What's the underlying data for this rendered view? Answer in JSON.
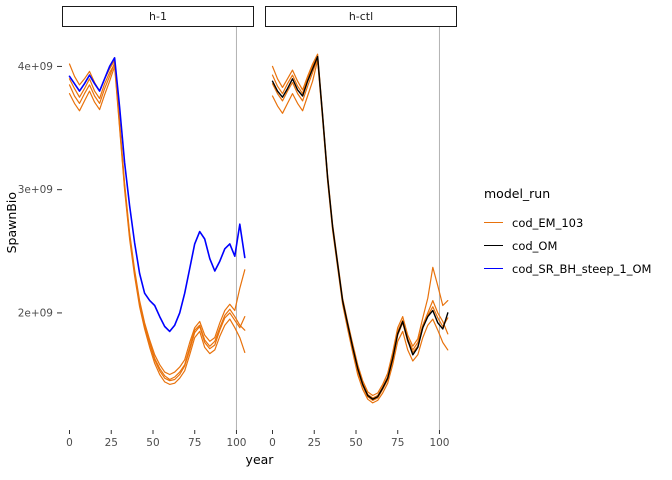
{
  "chart_data": {
    "type": "line",
    "title": "",
    "xlabel": "year",
    "ylabel": "SpawnBio",
    "legend_title": "model_run",
    "legend_position": "right",
    "grid": "off",
    "y_units_multiplier": 1000000000,
    "xlim": [
      -4.5,
      110.5
    ],
    "ylim": [
      1.05,
      4.32
    ],
    "x_ticks": [
      0,
      25,
      50,
      75,
      100
    ],
    "y_ticks": [
      "2e+09",
      "3e+09",
      "4e+09"
    ],
    "y_tick_values": [
      2,
      3,
      4
    ],
    "reference_line_x": 100,
    "reference_line_color": "#b3b3b3",
    "x": [
      0,
      3,
      6,
      9,
      12,
      15,
      18,
      21,
      24,
      27,
      30,
      33,
      36,
      39,
      42,
      45,
      48,
      51,
      54,
      57,
      60,
      63,
      66,
      69,
      72,
      75,
      78,
      81,
      84,
      87,
      90,
      93,
      96,
      99,
      102,
      105
    ],
    "legend": [
      {
        "label": "cod_EM_103",
        "color": "#E8720C"
      },
      {
        "label": "cod_OM",
        "color": "#000000"
      },
      {
        "label": "cod_SR_BH_steep_1_OM",
        "color": "#0000FF"
      }
    ],
    "facets": [
      {
        "label": "h-1",
        "series": [
          {
            "name": "cod_EM_103",
            "iteration": 1,
            "color": "#E8720C",
            "width": 1.2,
            "values": [
              4.02,
              3.92,
              3.85,
              3.9,
              3.96,
              3.87,
              3.8,
              3.9,
              3.98,
              4.05,
              3.55,
              3.05,
              2.65,
              2.35,
              2.1,
              1.92,
              1.78,
              1.66,
              1.58,
              1.52,
              1.5,
              1.52,
              1.56,
              1.62,
              1.76,
              1.88,
              1.93,
              1.82,
              1.77,
              1.8,
              1.92,
              2.02,
              2.07,
              2.02,
              2.2,
              2.35
            ]
          },
          {
            "name": "cod_EM_103",
            "iteration": 2,
            "color": "#E8720C",
            "width": 1.2,
            "values": [
              3.78,
              3.7,
              3.64,
              3.72,
              3.8,
              3.71,
              3.65,
              3.77,
              3.88,
              4.0,
              3.5,
              3.0,
              2.6,
              2.3,
              2.05,
              1.87,
              1.72,
              1.59,
              1.5,
              1.44,
              1.42,
              1.43,
              1.47,
              1.53,
              1.66,
              1.8,
              1.85,
              1.72,
              1.67,
              1.7,
              1.81,
              1.9,
              1.95,
              1.88,
              1.8,
              1.68
            ]
          },
          {
            "name": "cod_EM_103",
            "iteration": 3,
            "color": "#E8720C",
            "width": 1.2,
            "values": [
              3.9,
              3.82,
              3.75,
              3.82,
              3.9,
              3.8,
              3.74,
              3.86,
              3.95,
              4.02,
              3.52,
              3.02,
              2.62,
              2.32,
              2.07,
              1.9,
              1.75,
              1.62,
              1.53,
              1.47,
              1.45,
              1.46,
              1.5,
              1.57,
              1.7,
              1.84,
              1.89,
              1.76,
              1.71,
              1.74,
              1.86,
              1.96,
              2.0,
              1.94,
              1.88,
              1.97
            ]
          },
          {
            "name": "cod_EM_103",
            "iteration": 4,
            "color": "#E8720C",
            "width": 1.2,
            "values": [
              3.85,
              3.76,
              3.7,
              3.78,
              3.85,
              3.76,
              3.7,
              3.82,
              3.92,
              4.03,
              3.53,
              3.03,
              2.63,
              2.33,
              2.08,
              1.9,
              1.76,
              1.63,
              1.55,
              1.49,
              1.46,
              1.48,
              1.52,
              1.58,
              1.72,
              1.86,
              1.9,
              1.78,
              1.73,
              1.77,
              1.88,
              1.98,
              2.03,
              1.97,
              1.9,
              1.86
            ]
          },
          {
            "name": "cod_SR_BH_steep_1_OM",
            "color": "#0000FF",
            "width": 1.6,
            "values": [
              3.92,
              3.86,
              3.8,
              3.86,
              3.93,
              3.86,
              3.8,
              3.9,
              4.0,
              4.07,
              3.67,
              3.22,
              2.87,
              2.57,
              2.32,
              2.16,
              2.1,
              2.06,
              1.97,
              1.89,
              1.85,
              1.9,
              2.0,
              2.16,
              2.36,
              2.56,
              2.66,
              2.6,
              2.44,
              2.34,
              2.42,
              2.52,
              2.56,
              2.46,
              2.72,
              2.45
            ]
          }
        ]
      },
      {
        "label": "h-ctl",
        "series": [
          {
            "name": "cod_EM_103",
            "iteration": 1,
            "color": "#E8720C",
            "width": 1.2,
            "values": [
              4.0,
              3.9,
              3.83,
              3.9,
              3.97,
              3.88,
              3.81,
              3.92,
              4.02,
              4.1,
              3.62,
              3.12,
              2.72,
              2.42,
              2.12,
              1.93,
              1.75,
              1.58,
              1.45,
              1.36,
              1.33,
              1.35,
              1.42,
              1.51,
              1.68,
              1.88,
              1.97,
              1.82,
              1.73,
              1.79,
              1.96,
              2.12,
              2.37,
              2.22,
              2.06,
              2.1
            ]
          },
          {
            "name": "cod_EM_103",
            "iteration": 2,
            "color": "#E8720C",
            "width": 1.2,
            "values": [
              3.76,
              3.68,
              3.62,
              3.7,
              3.78,
              3.7,
              3.64,
              3.76,
              3.88,
              4.05,
              3.57,
              3.07,
              2.67,
              2.37,
              2.07,
              1.87,
              1.68,
              1.5,
              1.38,
              1.3,
              1.27,
              1.29,
              1.35,
              1.43,
              1.58,
              1.77,
              1.85,
              1.7,
              1.61,
              1.66,
              1.8,
              1.9,
              1.95,
              1.86,
              1.76,
              1.7
            ]
          },
          {
            "name": "cod_EM_103",
            "iteration": 3,
            "color": "#E8720C",
            "width": 1.2,
            "values": [
              3.86,
              3.78,
              3.72,
              3.8,
              3.87,
              3.78,
              3.72,
              3.84,
              3.95,
              4.07,
              3.59,
              3.09,
              2.69,
              2.39,
              2.09,
              1.9,
              1.71,
              1.53,
              1.41,
              1.32,
              1.29,
              1.31,
              1.38,
              1.46,
              1.62,
              1.82,
              1.92,
              1.77,
              1.68,
              1.73,
              1.88,
              1.98,
              2.05,
              1.96,
              1.89,
              1.96
            ]
          },
          {
            "name": "cod_EM_103",
            "iteration": 4,
            "color": "#E8720C",
            "width": 1.2,
            "values": [
              3.93,
              3.84,
              3.78,
              3.86,
              3.93,
              3.84,
              3.78,
              3.9,
              4.0,
              4.08,
              3.6,
              3.1,
              2.7,
              2.4,
              2.1,
              1.91,
              1.73,
              1.56,
              1.43,
              1.34,
              1.31,
              1.33,
              1.4,
              1.48,
              1.65,
              1.85,
              1.94,
              1.79,
              1.7,
              1.76,
              1.9,
              2.0,
              2.1,
              2.0,
              1.93,
              1.83
            ]
          },
          {
            "name": "cod_OM",
            "color": "#000000",
            "width": 1.4,
            "values": [
              3.88,
              3.8,
              3.75,
              3.82,
              3.9,
              3.81,
              3.76,
              3.88,
              3.98,
              4.08,
              3.6,
              3.1,
              2.7,
              2.4,
              2.1,
              1.91,
              1.72,
              1.55,
              1.42,
              1.33,
              1.3,
              1.32,
              1.39,
              1.47,
              1.63,
              1.83,
              1.93,
              1.78,
              1.66,
              1.72,
              1.88,
              1.97,
              2.02,
              1.92,
              1.87,
              2.0
            ]
          }
        ]
      }
    ]
  }
}
